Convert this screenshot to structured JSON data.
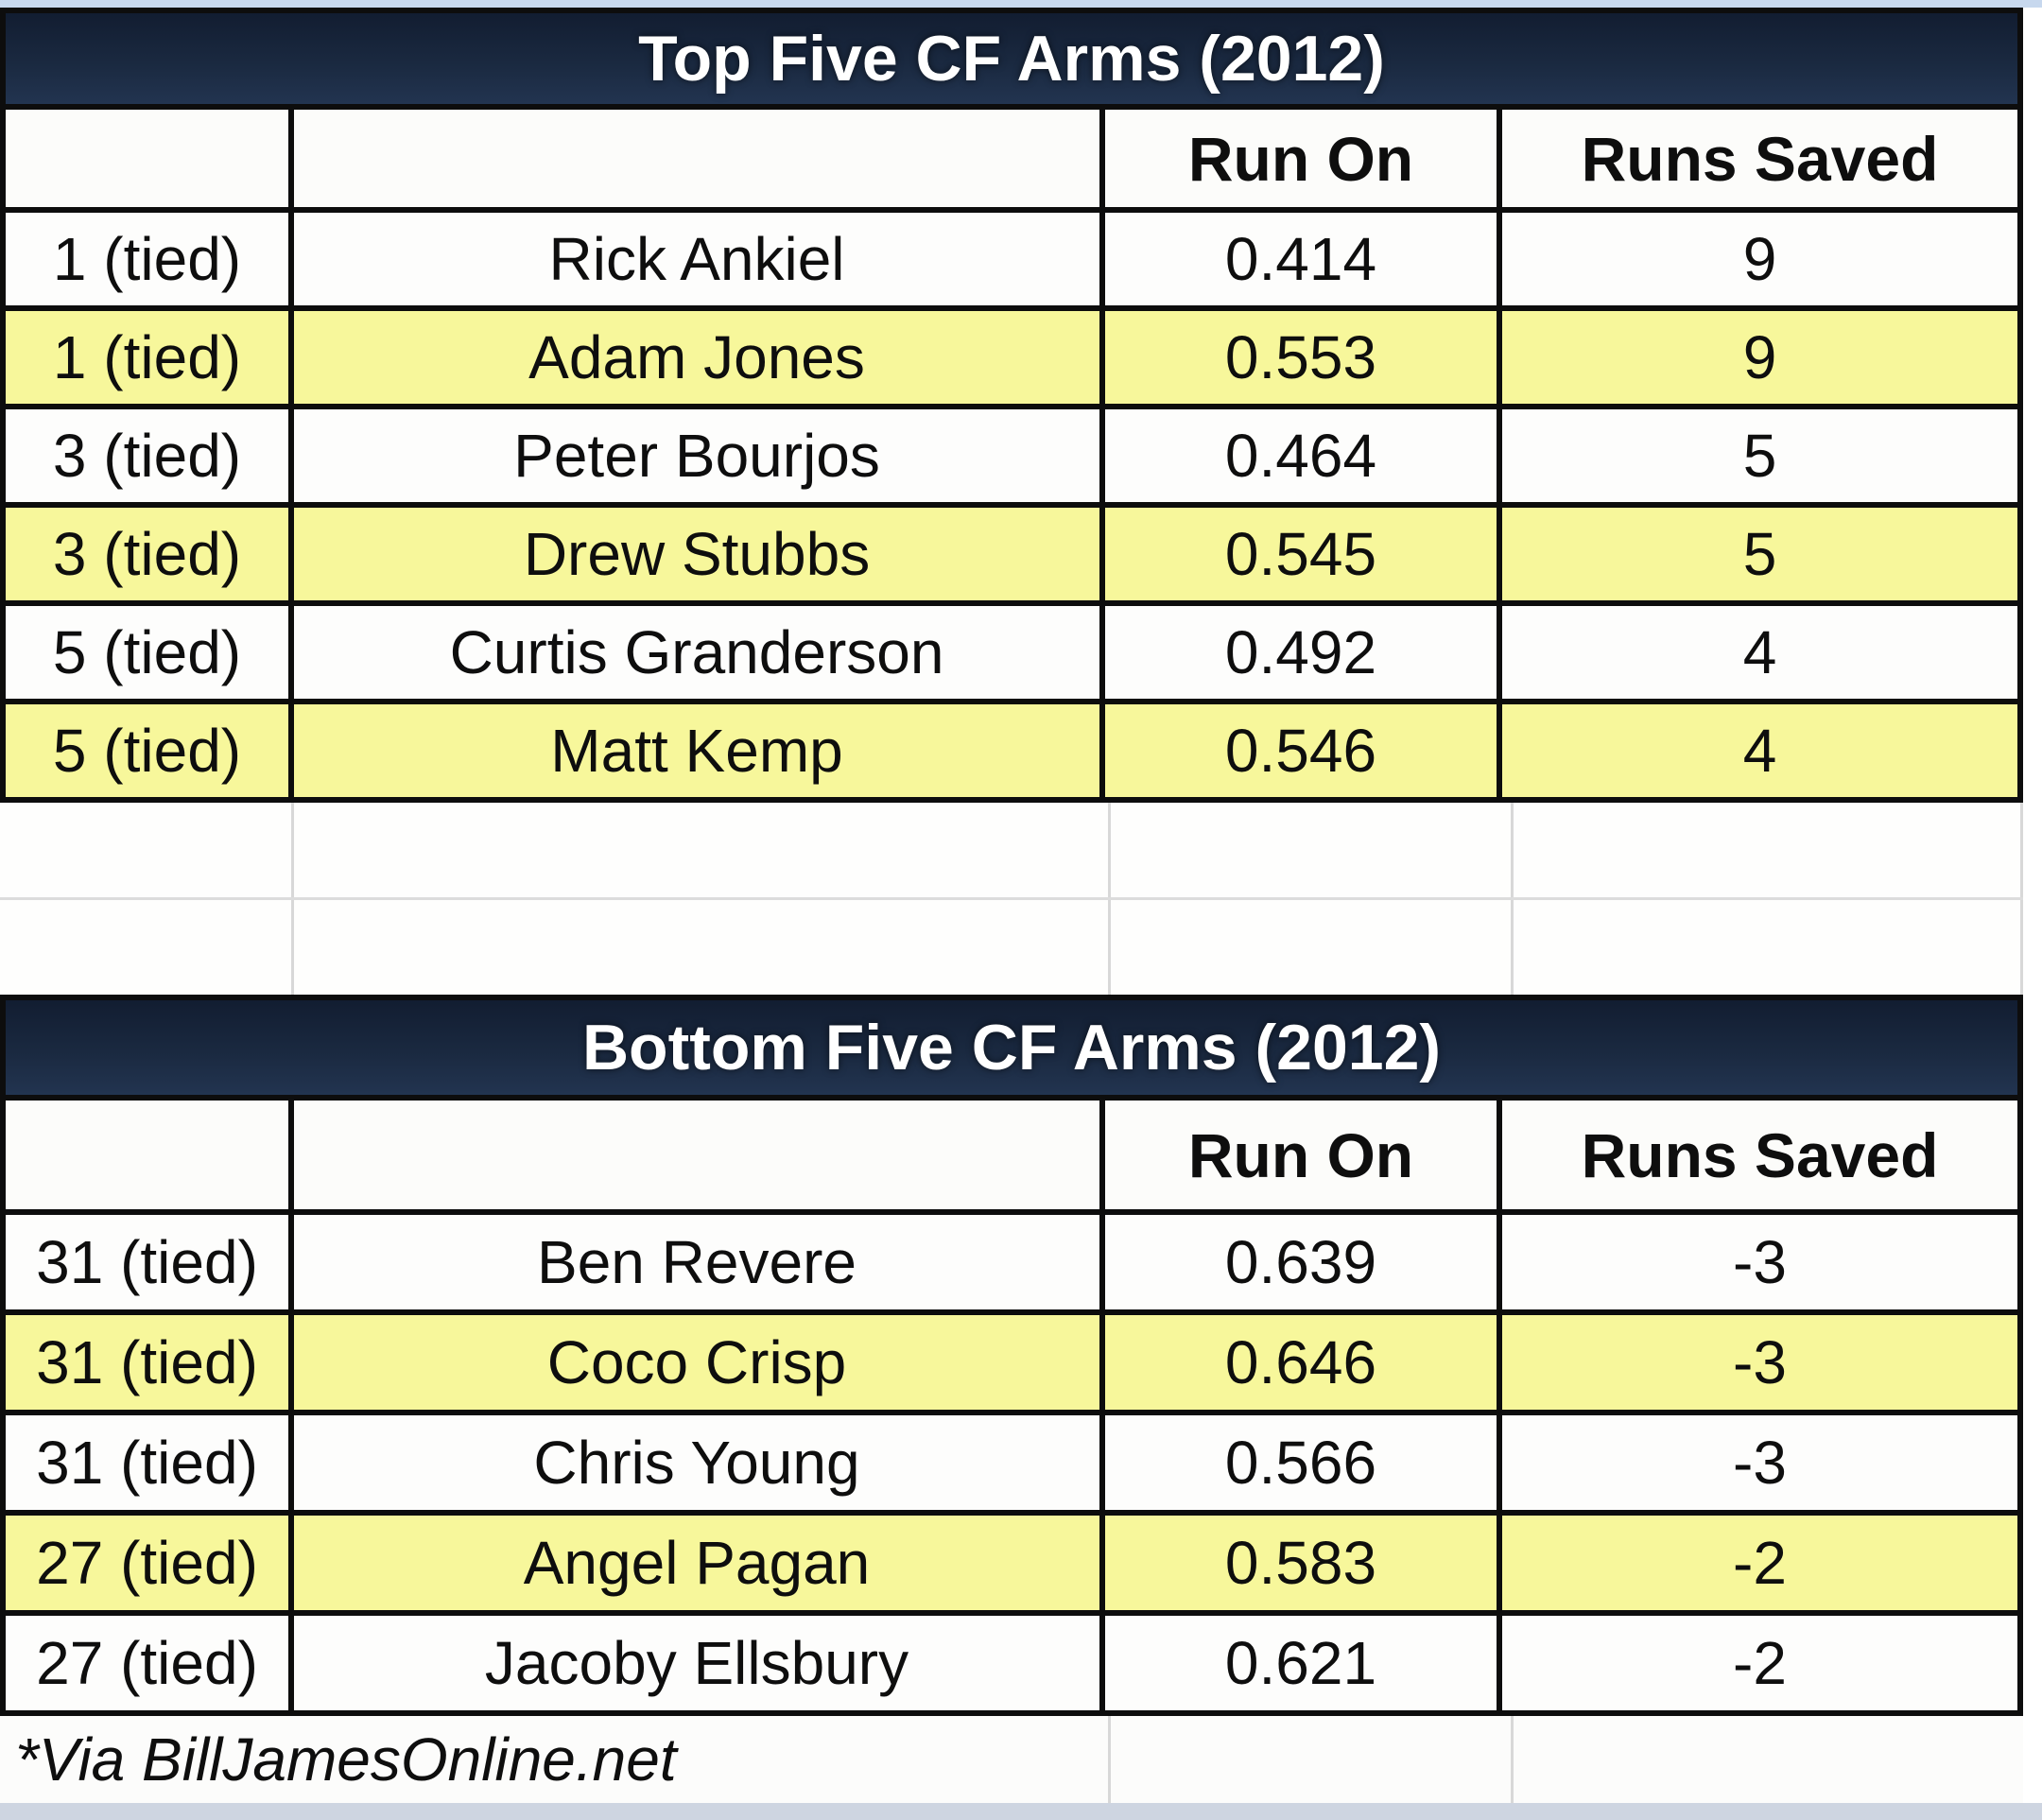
{
  "chart_data": [
    {
      "type": "table",
      "title": "Top Five CF Arms (2012)",
      "columns": [
        "",
        "",
        "Run On",
        "Runs Saved"
      ],
      "rows": [
        {
          "rank": "1 (tied)",
          "name": "Rick Ankiel",
          "run_on": "0.414",
          "runs_saved": "9",
          "highlight": false
        },
        {
          "rank": "1 (tied)",
          "name": "Adam Jones",
          "run_on": "0.553",
          "runs_saved": "9",
          "highlight": true
        },
        {
          "rank": "3 (tied)",
          "name": "Peter Bourjos",
          "run_on": "0.464",
          "runs_saved": "5",
          "highlight": false
        },
        {
          "rank": "3 (tied)",
          "name": "Drew Stubbs",
          "run_on": "0.545",
          "runs_saved": "5",
          "highlight": true
        },
        {
          "rank": "5 (tied)",
          "name": "Curtis Granderson",
          "run_on": "0.492",
          "runs_saved": "4",
          "highlight": false
        },
        {
          "rank": "5 (tied)",
          "name": "Matt Kemp",
          "run_on": "0.546",
          "runs_saved": "4",
          "highlight": true
        }
      ]
    },
    {
      "type": "table",
      "title": "Bottom Five CF Arms (2012)",
      "columns": [
        "",
        "",
        "Run On",
        "Runs Saved"
      ],
      "rows": [
        {
          "rank": "31 (tied)",
          "name": "Ben Revere",
          "run_on": "0.639",
          "runs_saved": "-3",
          "highlight": false
        },
        {
          "rank": "31 (tied)",
          "name": "Coco Crisp",
          "run_on": "0.646",
          "runs_saved": "-3",
          "highlight": true
        },
        {
          "rank": "31 (tied)",
          "name": "Chris Young",
          "run_on": "0.566",
          "runs_saved": "-3",
          "highlight": false
        },
        {
          "rank": "27 (tied)",
          "name": "Angel Pagan",
          "run_on": "0.583",
          "runs_saved": "-2",
          "highlight": true
        },
        {
          "rank": "27 (tied)",
          "name": "Jacoby Ellsbury",
          "run_on": "0.621",
          "runs_saved": "-2",
          "highlight": false
        }
      ]
    }
  ],
  "footer": {
    "note": "*Via BillJamesOnline.net"
  },
  "colors": {
    "header_navy": "#1a2940",
    "highlight_yellow": "#f7f79b",
    "row_white": "#fdfdfc",
    "grid_black": "#0d0d0d",
    "grid_faint": "#d8d8d8",
    "top_strip": "#c7d8ee",
    "bottom_strip": "#ced5e1",
    "title_text": "#ffffff"
  }
}
